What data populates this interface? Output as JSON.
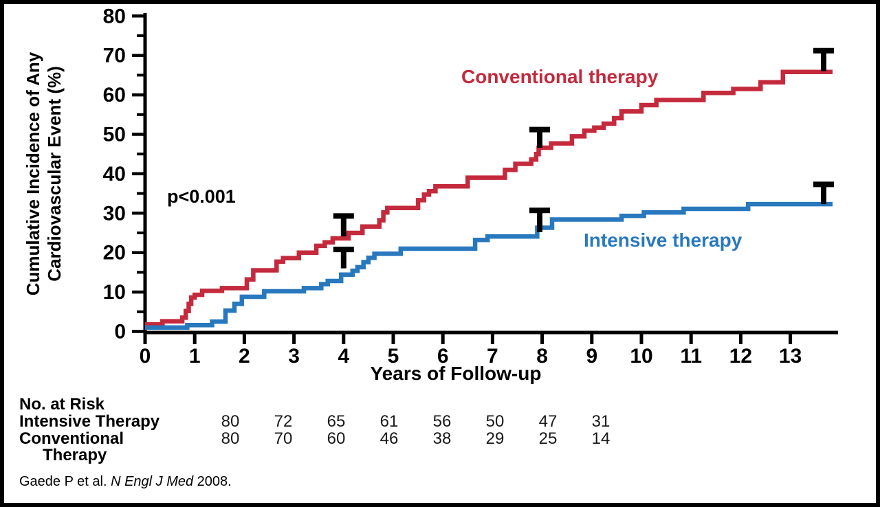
{
  "chart_data": {
    "type": "line",
    "subtype": "step",
    "title": "",
    "xlabel": "Years of Follow-up",
    "ylabel": "Cumulative Incidence of Any Cardiovascular Event (%)",
    "ylabel_lines": [
      "Cumulative Incidence of Any",
      "Cardiovascular Event (%)"
    ],
    "annotation": "p<0.001",
    "xlim": [
      0,
      13.85
    ],
    "ylim": [
      0,
      80
    ],
    "x_ticks": [
      0,
      1,
      2,
      3,
      4,
      5,
      6,
      7,
      8,
      9,
      10,
      11,
      12,
      13
    ],
    "y_ticks": [
      0,
      10,
      20,
      30,
      40,
      50,
      60,
      70,
      80
    ],
    "y_minor_ticks": [
      5,
      15,
      25,
      35,
      45,
      55,
      65,
      75
    ],
    "grid": false,
    "legend_position": "inline-curve-labels",
    "series": [
      {
        "name": "Conventional therapy",
        "color": "#c4293c",
        "x_end": 13.85,
        "steps": [
          [
            0,
            1.8
          ],
          [
            0.35,
            2.6
          ],
          [
            0.75,
            3.5
          ],
          [
            0.82,
            5.2
          ],
          [
            0.88,
            7.0
          ],
          [
            0.93,
            8.6
          ],
          [
            1.0,
            9.3
          ],
          [
            1.15,
            10.3
          ],
          [
            1.55,
            11.0
          ],
          [
            2.05,
            13.2
          ],
          [
            2.18,
            15.5
          ],
          [
            2.65,
            17.7
          ],
          [
            2.78,
            18.6
          ],
          [
            3.1,
            20.0
          ],
          [
            3.45,
            21.7
          ],
          [
            3.62,
            22.6
          ],
          [
            3.78,
            23.6
          ],
          [
            4.1,
            25.0
          ],
          [
            4.38,
            26.6
          ],
          [
            4.72,
            28.2
          ],
          [
            4.8,
            30.2
          ],
          [
            4.88,
            31.3
          ],
          [
            5.5,
            33.3
          ],
          [
            5.62,
            34.7
          ],
          [
            5.72,
            35.6
          ],
          [
            5.85,
            36.8
          ],
          [
            6.5,
            39.0
          ],
          [
            7.25,
            41.0
          ],
          [
            7.46,
            42.5
          ],
          [
            7.78,
            43.6
          ],
          [
            7.88,
            45.0
          ],
          [
            7.93,
            46.6
          ],
          [
            8.18,
            47.7
          ],
          [
            8.6,
            49.5
          ],
          [
            8.85,
            50.9
          ],
          [
            9.05,
            51.7
          ],
          [
            9.24,
            52.7
          ],
          [
            9.45,
            54.1
          ],
          [
            9.6,
            55.8
          ],
          [
            10.0,
            57.4
          ],
          [
            10.3,
            58.7
          ],
          [
            11.25,
            60.5
          ],
          [
            11.85,
            61.5
          ],
          [
            12.4,
            63.2
          ],
          [
            12.85,
            65.8
          ]
        ]
      },
      {
        "name": "Intensive therapy",
        "color": "#2878be",
        "x_end": 13.85,
        "steps": [
          [
            0,
            1.0
          ],
          [
            0.85,
            1.6
          ],
          [
            1.35,
            2.5
          ],
          [
            1.62,
            5.3
          ],
          [
            1.8,
            7.0
          ],
          [
            1.95,
            8.8
          ],
          [
            2.4,
            10.2
          ],
          [
            3.2,
            11.0
          ],
          [
            3.55,
            12.0
          ],
          [
            3.68,
            12.8
          ],
          [
            3.95,
            14.4
          ],
          [
            4.18,
            15.4
          ],
          [
            4.28,
            16.3
          ],
          [
            4.4,
            17.6
          ],
          [
            4.5,
            18.7
          ],
          [
            4.62,
            19.7
          ],
          [
            5.15,
            21.0
          ],
          [
            6.65,
            23.2
          ],
          [
            6.9,
            24.1
          ],
          [
            7.9,
            26.3
          ],
          [
            8.2,
            28.4
          ],
          [
            9.6,
            29.3
          ],
          [
            10.05,
            30.2
          ],
          [
            10.85,
            31.1
          ],
          [
            12.15,
            32.3
          ]
        ]
      }
    ],
    "error_bars": [
      {
        "series": "Conventional therapy",
        "x": 4.0,
        "from": 24.1,
        "to": 29.3
      },
      {
        "series": "Intensive therapy",
        "x": 4.0,
        "from": 16.0,
        "to": 20.8
      },
      {
        "series": "Conventional therapy",
        "x": 7.95,
        "from": 46.6,
        "to": 51.2
      },
      {
        "series": "Intensive therapy",
        "x": 7.95,
        "from": 25.2,
        "to": 30.7
      },
      {
        "series": "Conventional therapy",
        "x": 13.67,
        "from": 66.0,
        "to": 71.2
      },
      {
        "series": "Intensive therapy",
        "x": 13.67,
        "from": 32.3,
        "to": 37.3
      }
    ]
  },
  "labels": {
    "conventional": "Conventional therapy",
    "intensive": "Intensive therapy"
  },
  "risk_table": {
    "title": "No. at Risk",
    "rows": [
      {
        "label": "Intensive Therapy",
        "label2": "",
        "values": [
          "80",
          "72",
          "65",
          "61",
          "56",
          "50",
          "47",
          "31"
        ]
      },
      {
        "label": "Conventional",
        "label2": "Therapy",
        "values": [
          "80",
          "70",
          "60",
          "46",
          "38",
          "29",
          "25",
          "14"
        ]
      }
    ]
  },
  "footer": {
    "prefix": "Gaede P et al. ",
    "journal": "N Engl J Med",
    "suffix": " 2008."
  },
  "colors": {
    "conventional": "#c4293c",
    "intensive": "#2878be",
    "axis": "#000000",
    "background": "#ffffff"
  }
}
